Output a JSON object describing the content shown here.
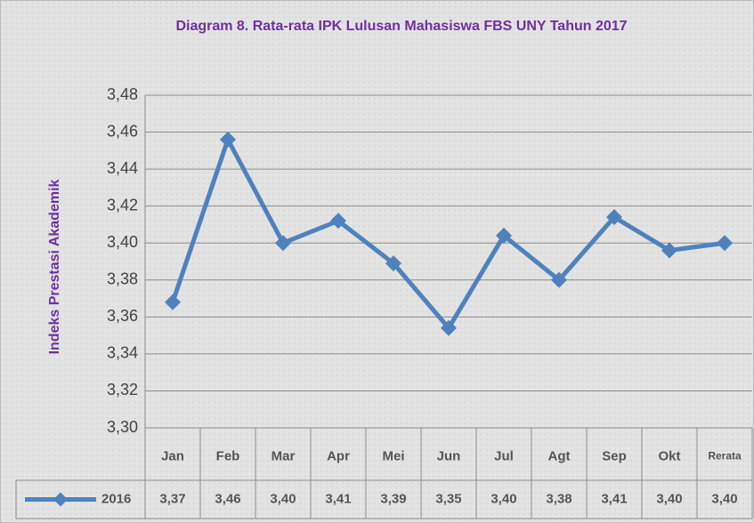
{
  "chart_data": {
    "type": "line",
    "title": "Diagram 8. Rata-rata IPK Lulusan Mahasiswa FBS UNY Tahun 2017",
    "y_label": "Indeks Prestasi Akademik",
    "categories": [
      "Jan",
      "Feb",
      "Mar",
      "Apr",
      "Mei",
      "Jun",
      "Jul",
      "Agt",
      "Sep",
      "Okt",
      "Rerata"
    ],
    "series": [
      {
        "name": "2016",
        "color": "#4f81bd",
        "values": [
          3.368,
          3.456,
          3.4,
          3.412,
          3.389,
          3.354,
          3.404,
          3.38,
          3.414,
          3.396,
          3.4
        ],
        "value_labels": [
          "3,37",
          "3,46",
          "3,40",
          "3,41",
          "3,39",
          "3,35",
          "3,40",
          "3,38",
          "3,41",
          "3,40",
          "3,40"
        ]
      }
    ],
    "ylim": [
      3.3,
      3.48
    ],
    "yticks": [
      {
        "value": 3.3,
        "label": "3,30"
      },
      {
        "value": 3.32,
        "label": "3,32"
      },
      {
        "value": 3.34,
        "label": "3,34"
      },
      {
        "value": 3.36,
        "label": "3,36"
      },
      {
        "value": 3.38,
        "label": "3,38"
      },
      {
        "value": 3.4,
        "label": "3,40"
      },
      {
        "value": 3.42,
        "label": "3,42"
      },
      {
        "value": 3.44,
        "label": "3,44"
      },
      {
        "value": 3.46,
        "label": "3,46"
      },
      {
        "value": 3.48,
        "label": "3,48"
      }
    ],
    "grid": true
  }
}
